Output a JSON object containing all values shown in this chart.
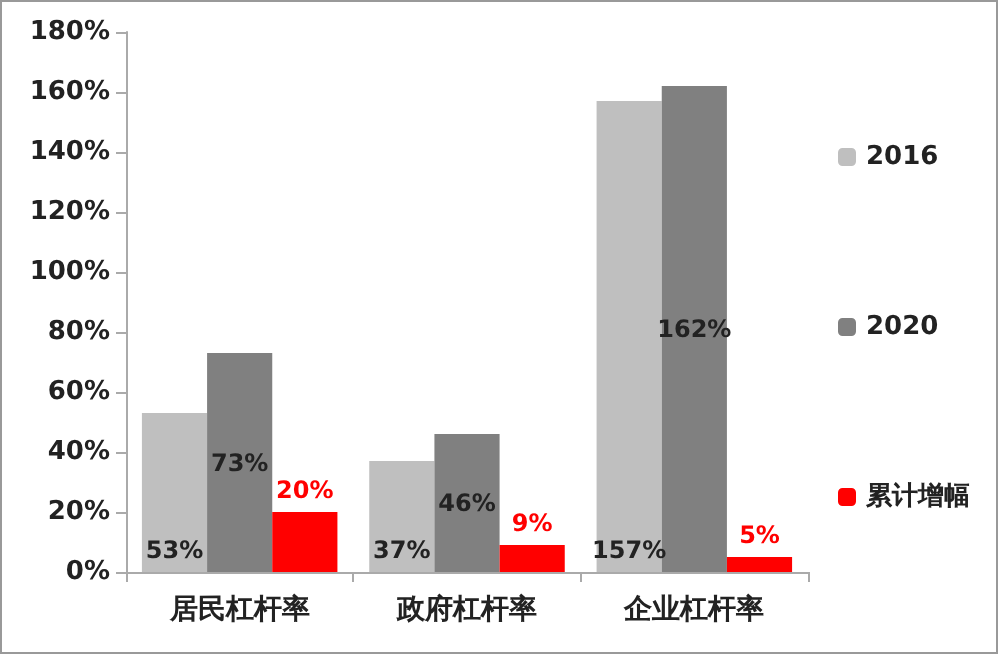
{
  "chart_data": {
    "type": "bar",
    "categories": [
      "居民杠杆率",
      "政府杠杆率",
      "企业杠杆率"
    ],
    "series": [
      {
        "name": "2016",
        "color": "#bfbfbf",
        "values": [
          53,
          37,
          157
        ],
        "value_labels": [
          "53%",
          "37%",
          "157%"
        ]
      },
      {
        "name": "2020",
        "color": "#808080",
        "values": [
          73,
          46,
          162
        ],
        "value_labels": [
          "73%",
          "46%",
          "162%"
        ]
      },
      {
        "name": "累计增幅",
        "color": "#ff0000",
        "values": [
          20,
          9,
          5
        ],
        "value_labels": [
          "20%",
          "9%",
          "5%"
        ]
      }
    ],
    "ylim": [
      0,
      180
    ],
    "yticks": [
      {
        "value": 0,
        "label": "0%"
      },
      {
        "value": 20,
        "label": "20%"
      },
      {
        "value": 40,
        "label": "40%"
      },
      {
        "value": 60,
        "label": "60%"
      },
      {
        "value": 80,
        "label": "80%"
      },
      {
        "value": 100,
        "label": "100%"
      },
      {
        "value": 120,
        "label": "120%"
      },
      {
        "value": 140,
        "label": "140%"
      },
      {
        "value": 160,
        "label": "160%"
      },
      {
        "value": 180,
        "label": "180%"
      }
    ],
    "grid": false,
    "legend": "right"
  }
}
